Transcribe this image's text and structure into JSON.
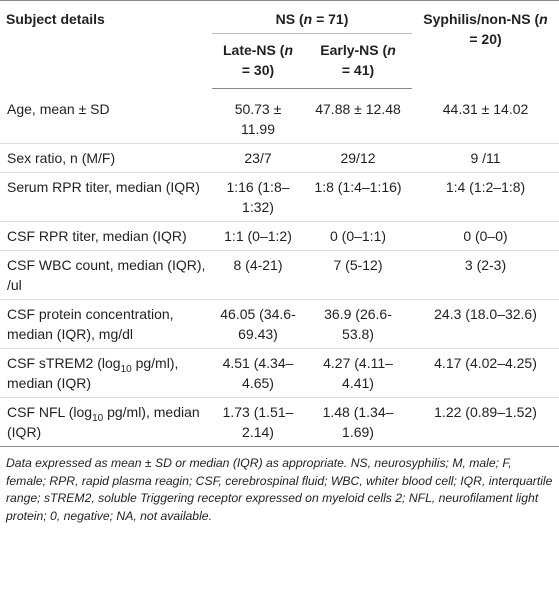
{
  "table": {
    "header": {
      "subject": "Subject details",
      "ns": [
        "NS (",
        "n",
        " = 71)"
      ],
      "syph": [
        "Syphilis/non-NS (",
        "n",
        " = 20)"
      ],
      "late": [
        "Late-NS (",
        "n",
        " = 30)"
      ],
      "early": [
        "Early-NS (",
        "n",
        " = 41)"
      ]
    },
    "rows": [
      {
        "label": [
          "Age, mean ± SD"
        ],
        "values": [
          "50.73 ± 11.99",
          "47.88 ± 12.48",
          "44.31 ± 14.02"
        ]
      },
      {
        "label": [
          "Sex ratio, n (M/F)"
        ],
        "values": [
          "23/7",
          "29/12",
          "9 /11"
        ]
      },
      {
        "label": [
          "Serum RPR titer, median (IQR)"
        ],
        "values": [
          "1:16 (1:8–1:32)",
          "1:8 (1:4–1:16)",
          "1:4 (1:2–1:8)"
        ]
      },
      {
        "label": [
          "CSF RPR titer, median (IQR)"
        ],
        "values": [
          "1:1 (0–1:2)",
          "0 (0–1:1)",
          "0 (0–0)"
        ]
      },
      {
        "label": [
          "CSF WBC count, median (IQR), /ul"
        ],
        "values": [
          "8 (4-21)",
          "7 (5-12)",
          "3 (2-3)"
        ]
      },
      {
        "label": [
          "CSF protein concentration, median (IQR), mg/dl"
        ],
        "values": [
          "46.05 (34.6-69.43)",
          "36.9 (26.6-53.8)",
          "24.3 (18.0–32.6)"
        ]
      },
      {
        "label": [
          "CSF sTREM2 (log",
          "10",
          " pg/ml), median (IQR)"
        ],
        "values": [
          "4.51 (4.34–4.65)",
          "4.27 (4.11–4.41)",
          "4.17 (4.02–4.25)"
        ]
      },
      {
        "label": [
          "CSF NFL (log",
          "10",
          " pg/ml), median (IQR)"
        ],
        "values": [
          "1.73 (1.51–2.14)",
          "1.48 (1.34–1.69)",
          "1.22 (0.89–1.52)"
        ]
      }
    ],
    "footnote": "Data expressed as mean ± SD or median (IQR) as appropriate. NS, neurosyphilis; M, male; F, female; RPR, rapid plasma reagin; CSF, cerebrospinal fluid; WBC, whiter blood cell; IQR, interquartile range; sTREM2, soluble Triggering receptor expressed on myeloid cells 2; NFL, neurofilament light protein; 0, negative; NA, not available."
  }
}
